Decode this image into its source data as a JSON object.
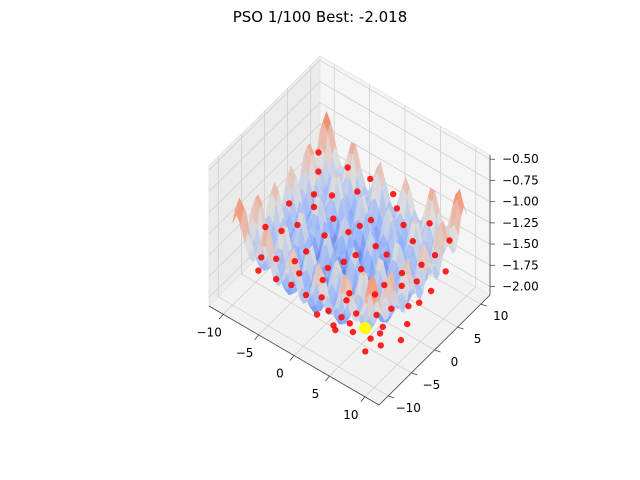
{
  "chart_data": {
    "type": "surface3d-scatter",
    "title": "PSO 1/100 Best: -2.018",
    "xlabel": "",
    "ylabel": "",
    "zlabel": "",
    "xlim": [
      -12,
      12
    ],
    "ylim": [
      -12,
      12
    ],
    "zlim": [
      -2.1,
      -0.45
    ],
    "x_ticks": [
      -10,
      -5,
      0,
      5,
      10
    ],
    "y_ticks": [
      -10,
      -5,
      0,
      5,
      10
    ],
    "z_ticks": [
      -2.0,
      -1.75,
      -1.5,
      -1.25,
      -1.0,
      -0.75,
      -0.5
    ],
    "z_tick_labels": [
      "−2.00",
      "−1.75",
      "−1.50",
      "−1.25",
      "−1.00",
      "−0.75",
      "−0.50"
    ],
    "x_tick_labels": [
      "−10",
      "−5",
      "0",
      "5",
      "10"
    ],
    "y_tick_labels": [
      "−10",
      "−5",
      "0",
      "5",
      "10"
    ],
    "surface": {
      "colormap": "coolwarm",
      "x_range": [
        -10,
        10
      ],
      "y_range": [
        -10,
        10
      ]
    },
    "particle_color": "#ff0000",
    "best_color": "#ffff00",
    "best_point": {
      "x": 4.5,
      "y": -3.5,
      "z": -2.018
    },
    "particles": [
      {
        "x": -9.2,
        "y": -4.1,
        "z": -1.46
      },
      {
        "x": -8.1,
        "y": -2.3,
        "z": -1.55
      },
      {
        "x": -7.6,
        "y": 0.4,
        "z": -1.6
      },
      {
        "x": -6.9,
        "y": 2.9,
        "z": -1.49
      },
      {
        "x": -6.3,
        "y": -6.2,
        "z": -1.58
      },
      {
        "x": -5.8,
        "y": 5.1,
        "z": -1.42
      },
      {
        "x": -5.2,
        "y": -1.4,
        "z": -1.7
      },
      {
        "x": -4.7,
        "y": 1.8,
        "z": -1.66
      },
      {
        "x": -4.1,
        "y": -4.6,
        "z": -1.73
      },
      {
        "x": -3.6,
        "y": 7.2,
        "z": -1.38
      },
      {
        "x": -3.0,
        "y": -8.0,
        "z": -1.63
      },
      {
        "x": -2.5,
        "y": 3.6,
        "z": -1.61
      },
      {
        "x": -2.0,
        "y": -2.7,
        "z": -1.81
      },
      {
        "x": -1.4,
        "y": 0.9,
        "z": -1.76
      },
      {
        "x": -0.9,
        "y": 6.0,
        "z": -1.52
      },
      {
        "x": -0.4,
        "y": -5.4,
        "z": -1.79
      },
      {
        "x": 0.2,
        "y": 2.2,
        "z": -1.84
      },
      {
        "x": 0.7,
        "y": -1.1,
        "z": -1.92
      },
      {
        "x": 1.2,
        "y": 8.4,
        "z": -1.41
      },
      {
        "x": 1.8,
        "y": -7.3,
        "z": -1.74
      },
      {
        "x": 2.3,
        "y": 4.5,
        "z": -1.69
      },
      {
        "x": 2.9,
        "y": -3.0,
        "z": -1.95
      },
      {
        "x": 3.4,
        "y": 0.3,
        "z": -1.88
      },
      {
        "x": 3.9,
        "y": -5.9,
        "z": -1.86
      },
      {
        "x": 4.5,
        "y": 6.8,
        "z": -1.55
      },
      {
        "x": 5.0,
        "y": -1.8,
        "z": -1.93
      },
      {
        "x": 5.6,
        "y": 2.7,
        "z": -1.8
      },
      {
        "x": 6.1,
        "y": -8.6,
        "z": -1.71
      },
      {
        "x": 6.7,
        "y": 5.3,
        "z": -1.64
      },
      {
        "x": 7.2,
        "y": -4.4,
        "z": -1.9
      },
      {
        "x": 7.8,
        "y": 0.8,
        "z": -1.83
      },
      {
        "x": 8.3,
        "y": 8.9,
        "z": -1.47
      },
      {
        "x": 8.8,
        "y": -6.7,
        "z": -1.84
      },
      {
        "x": 9.3,
        "y": 3.4,
        "z": -1.72
      },
      {
        "x": -8.7,
        "y": 6.6,
        "z": -1.36
      },
      {
        "x": -7.3,
        "y": -7.9,
        "z": -1.52
      },
      {
        "x": -6.0,
        "y": 8.8,
        "z": -1.3
      },
      {
        "x": -4.4,
        "y": -9.1,
        "z": -1.57
      },
      {
        "x": -3.2,
        "y": 9.4,
        "z": -1.33
      },
      {
        "x": -1.7,
        "y": -6.8,
        "z": -1.75
      },
      {
        "x": -0.1,
        "y": 9.6,
        "z": -1.37
      },
      {
        "x": 1.5,
        "y": -9.3,
        "z": -1.69
      },
      {
        "x": 2.6,
        "y": 7.7,
        "z": -1.5
      },
      {
        "x": 4.2,
        "y": -9.5,
        "z": -1.73
      },
      {
        "x": 5.3,
        "y": 9.2,
        "z": -1.43
      },
      {
        "x": 6.4,
        "y": -2.6,
        "z": -1.96
      },
      {
        "x": 7.5,
        "y": 7.0,
        "z": -1.58
      },
      {
        "x": 9.0,
        "y": -1.3,
        "z": -1.87
      },
      {
        "x": -9.5,
        "y": 1.5,
        "z": -1.5
      },
      {
        "x": -5.5,
        "y": -3.4,
        "z": -1.72
      },
      {
        "x": -2.8,
        "y": -0.4,
        "z": -1.83
      },
      {
        "x": 0.5,
        "y": 4.9,
        "z": -1.7
      },
      {
        "x": 3.1,
        "y": -8.2,
        "z": -1.8
      },
      {
        "x": 5.9,
        "y": 0.0,
        "z": -1.91
      },
      {
        "x": 8.1,
        "y": -9.0,
        "z": -1.82
      },
      {
        "x": 9.6,
        "y": 6.1,
        "z": -1.62
      },
      {
        "x": -7.9,
        "y": 4.4,
        "z": -1.47
      },
      {
        "x": -1.1,
        "y": 3.0,
        "z": -1.78
      },
      {
        "x": 2.0,
        "y": -4.8,
        "z": -1.94
      },
      {
        "x": 4.8,
        "y": 4.0,
        "z": -1.76
      },
      {
        "x": 6.9,
        "y": -6.0,
        "z": -1.89
      },
      {
        "x": 8.6,
        "y": 1.9,
        "z": -1.81
      },
      {
        "x": -6.6,
        "y": -9.6,
        "z": -1.55
      },
      {
        "x": -4.9,
        "y": 4.0,
        "z": -1.59
      },
      {
        "x": -2.2,
        "y": 5.6,
        "z": -1.63
      },
      {
        "x": 1.0,
        "y": -2.2,
        "z": -1.93
      },
      {
        "x": 3.6,
        "y": 2.0,
        "z": -1.85
      },
      {
        "x": 7.0,
        "y": 3.8,
        "z": -1.74
      },
      {
        "x": 9.8,
        "y": -3.9,
        "z": -1.88
      },
      {
        "x": -9.8,
        "y": 8.3,
        "z": -1.28
      }
    ]
  }
}
